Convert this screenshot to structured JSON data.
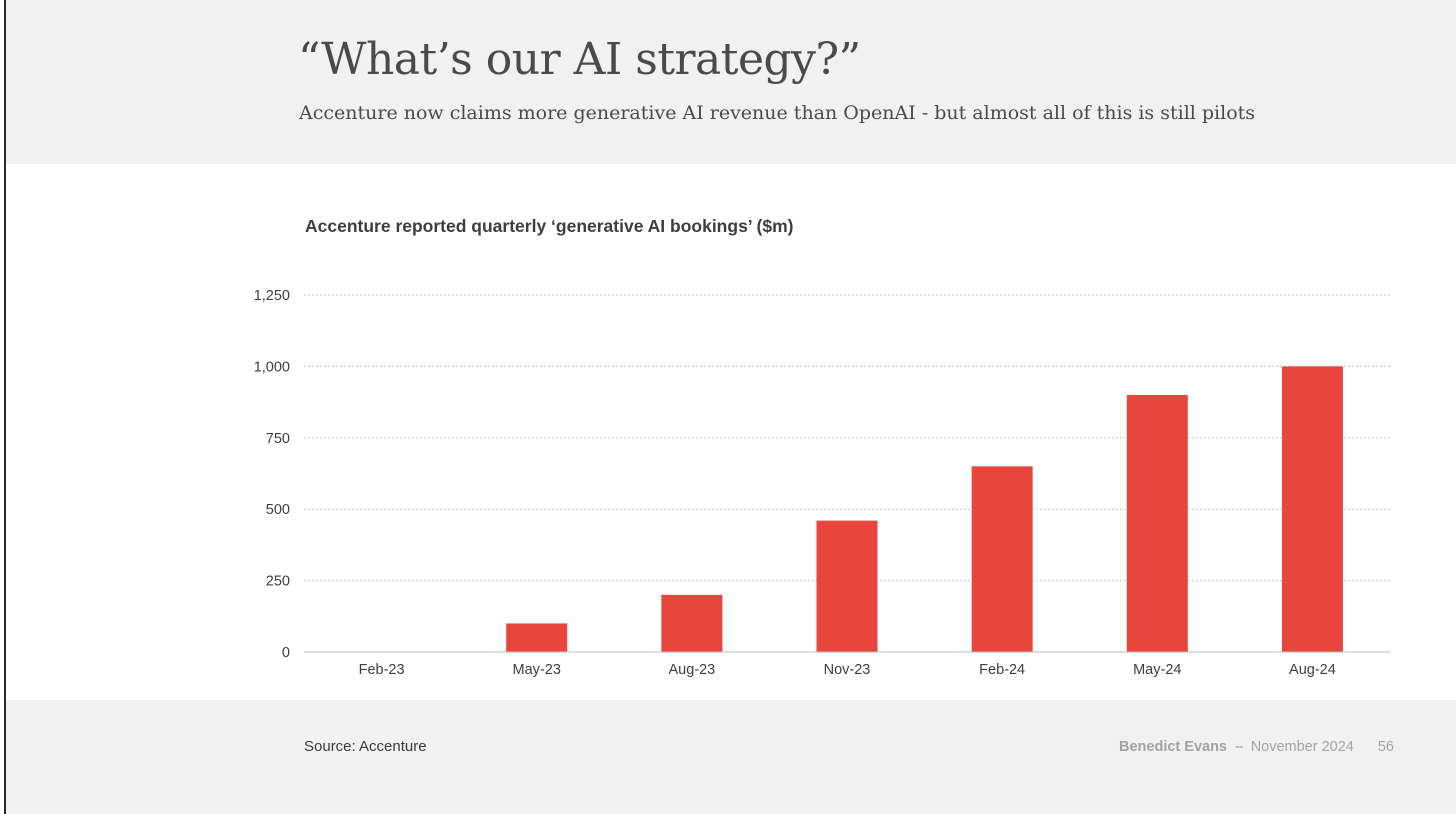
{
  "slide": {
    "headline": "“What’s our AI strategy?”",
    "subtitle": "Accenture now claims more generative AI revenue than OpenAI - but almost all of this is still pilots"
  },
  "footer": {
    "source": "Source: Accenture",
    "author": "Benedict Evans",
    "separator": "--",
    "date": "November 2024",
    "page_number": "56"
  },
  "colors": {
    "bar": "#e8453c",
    "background_band": "#f1f1f1",
    "gridline": "#b5b5b5",
    "axis": "#bdbdbd"
  },
  "chart_data": {
    "type": "bar",
    "title": "Accenture reported quarterly ‘generative AI bookings’ ($m)",
    "xlabel": "",
    "ylabel": "",
    "categories": [
      "Feb-23",
      "May-23",
      "Aug-23",
      "Nov-23",
      "Feb-24",
      "May-24",
      "Aug-24"
    ],
    "values": [
      0,
      100,
      200,
      460,
      650,
      900,
      1000
    ],
    "ylim": [
      0,
      1250
    ],
    "yticks": [
      0,
      250,
      500,
      750,
      1000,
      1250
    ],
    "ytick_labels": [
      "0",
      "250",
      "500",
      "750",
      "1,000",
      "1,250"
    ],
    "grid": true,
    "grid_style": "dotted",
    "legend": "none"
  }
}
